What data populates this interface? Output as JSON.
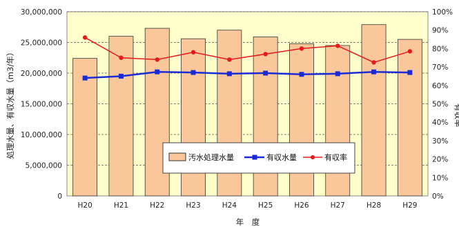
{
  "chart_data": {
    "type": "bar",
    "categories": [
      "H20",
      "H21",
      "H22",
      "H23",
      "H24",
      "H25",
      "H26",
      "H27",
      "H28",
      "H29"
    ],
    "series": [
      {
        "name": "汚水処理水量",
        "type": "bar",
        "axis": "left",
        "values": [
          22400000,
          26000000,
          27300000,
          25600000,
          27000000,
          25900000,
          24800000,
          24500000,
          27900000,
          25500000
        ]
      },
      {
        "name": "有収水量",
        "type": "line",
        "axis": "left",
        "values": [
          19200000,
          19500000,
          20200000,
          20100000,
          19900000,
          20000000,
          19800000,
          19900000,
          20200000,
          20100000
        ]
      },
      {
        "name": "有収率",
        "type": "line",
        "axis": "right",
        "values": [
          86,
          75,
          74,
          78,
          74,
          77,
          80,
          81.5,
          72.5,
          78.5
        ]
      }
    ],
    "ylim": [
      0,
      30000000
    ],
    "y_ticks": [
      "0",
      "5,000,000",
      "10,000,000",
      "15,000,000",
      "20,000,000",
      "25,000,000",
      "30,000,000"
    ],
    "y2lim": [
      0,
      100
    ],
    "y2_ticks": [
      "0%",
      "10%",
      "20%",
      "30%",
      "40%",
      "50%",
      "60%",
      "70%",
      "80%",
      "90%",
      "100%"
    ],
    "ylabel": "処理水量、有収水量（m3/年）",
    "y2label": "有収率",
    "xlabel": "年　度",
    "legend_position": "lower-center",
    "grid": "horizontal-dashed",
    "colors": {
      "plot_bg": "#ffffcc",
      "bar_fill": "#f9c79a",
      "bar_stroke": "#333333",
      "line1": "#1a2bd6",
      "line2": "#e8191a",
      "grid": "#555555"
    }
  }
}
